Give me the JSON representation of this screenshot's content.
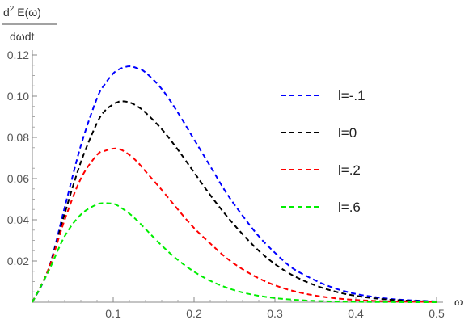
{
  "chart_data": {
    "type": "line",
    "title": "",
    "xlabel": "ω",
    "ylabel": {
      "num_prefix": "d",
      "num_sup": "2",
      "num_rest": " E(ω)",
      "den": "dωdt"
    },
    "xlim": [
      0,
      0.5
    ],
    "ylim": [
      0,
      0.12
    ],
    "x_ticks": [
      "0.1",
      "0.2",
      "0.3",
      "0.4",
      "0.5"
    ],
    "y_ticks": [
      "0.02",
      "0.04",
      "0.06",
      "0.08",
      "0.10",
      "0.12"
    ],
    "grid": false,
    "legend_position": "right",
    "x": [
      0,
      0.02,
      0.04,
      0.06,
      0.08,
      0.09,
      0.1,
      0.105,
      0.11,
      0.12,
      0.13,
      0.14,
      0.16,
      0.18,
      0.2,
      0.22,
      0.24,
      0.26,
      0.28,
      0.3,
      0.32,
      0.34,
      0.36,
      0.38,
      0.4,
      0.42,
      0.44,
      0.46,
      0.48,
      0.5
    ],
    "series": [
      {
        "name": "l=-.1",
        "color": "#0000ff",
        "values": [
          0,
          0.016,
          0.046,
          0.076,
          0.099,
          0.106,
          0.111,
          0.1125,
          0.1135,
          0.1145,
          0.1135,
          0.1115,
          0.1035,
          0.092,
          0.079,
          0.066,
          0.053,
          0.042,
          0.032,
          0.024,
          0.017,
          0.0125,
          0.0088,
          0.006,
          0.004,
          0.0027,
          0.0017,
          0.0011,
          0.0007,
          0.0004
        ]
      },
      {
        "name": "l=0",
        "color": "#000000",
        "values": [
          0,
          0.016,
          0.043,
          0.068,
          0.087,
          0.093,
          0.096,
          0.097,
          0.0975,
          0.097,
          0.095,
          0.092,
          0.084,
          0.074,
          0.063,
          0.052,
          0.042,
          0.033,
          0.025,
          0.0185,
          0.0135,
          0.0097,
          0.0068,
          0.0046,
          0.0031,
          0.002,
          0.0013,
          0.0008,
          0.0005,
          0.0003
        ]
      },
      {
        "name": "l=.2",
        "color": "#ff0000",
        "values": [
          0,
          0.016,
          0.04,
          0.06,
          0.0715,
          0.0735,
          0.0745,
          0.0745,
          0.074,
          0.0715,
          0.068,
          0.0635,
          0.0545,
          0.045,
          0.036,
          0.0285,
          0.0215,
          0.016,
          0.0116,
          0.0082,
          0.0057,
          0.0039,
          0.0026,
          0.0017,
          0.0011,
          0.0007,
          0.0004,
          0.0003,
          0.0002,
          0.0001
        ]
      },
      {
        "name": "l=.6",
        "color": "#00ee00",
        "values": [
          0,
          0.015,
          0.032,
          0.0425,
          0.0475,
          0.048,
          0.0478,
          0.047,
          0.0458,
          0.043,
          0.0395,
          0.0355,
          0.0275,
          0.0205,
          0.0148,
          0.0104,
          0.0071,
          0.0047,
          0.0031,
          0.002,
          0.0013,
          0.0008,
          0.0005,
          0.0003,
          0.0002,
          0.0001,
          0.0001,
          0.0,
          0.0,
          0.0
        ]
      }
    ]
  }
}
